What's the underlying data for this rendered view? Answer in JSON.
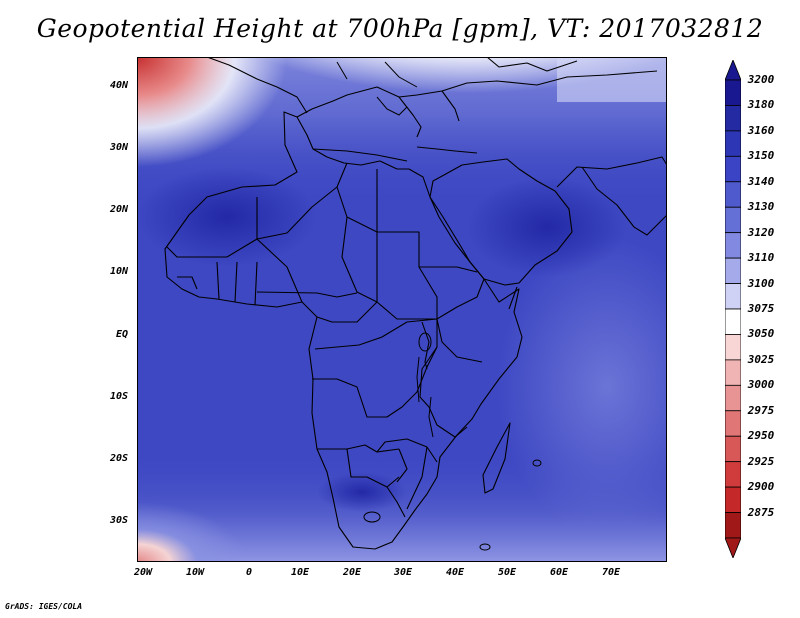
{
  "title": "Geopotential Height at 700hPa [gpm], VT: 2017032812",
  "credit": "GrADS: IGES/COLA",
  "lat_labels": [
    "40N",
    "30N",
    "20N",
    "10N",
    "EQ",
    "10S",
    "20S",
    "30S"
  ],
  "lon_labels": [
    "20W",
    "10W",
    "0",
    "10E",
    "20E",
    "30E",
    "40E",
    "50E",
    "60E",
    "70E"
  ],
  "colorbar": {
    "levels": [
      "3200",
      "3180",
      "3160",
      "3150",
      "3140",
      "3130",
      "3120",
      "3110",
      "3100",
      "3075",
      "3050",
      "3025",
      "3000",
      "2975",
      "2950",
      "2925",
      "2900",
      "2875"
    ],
    "colors": [
      "#1a1890",
      "#232aa2",
      "#2d37b5",
      "#3a44c4",
      "#4f5acd",
      "#6570d6",
      "#8289e0",
      "#a5aaea",
      "#d0d2f5",
      "#ffffff",
      "#f8d6d6",
      "#f0b4b4",
      "#e89494",
      "#e07676",
      "#d85858",
      "#d03c3c",
      "#c42828",
      "#a01818"
    ]
  },
  "map": {
    "extent": {
      "lon_min": -25,
      "lon_max": 80,
      "lat_min": -37,
      "lat_max": 45
    },
    "base_color": "#3e48c3"
  }
}
